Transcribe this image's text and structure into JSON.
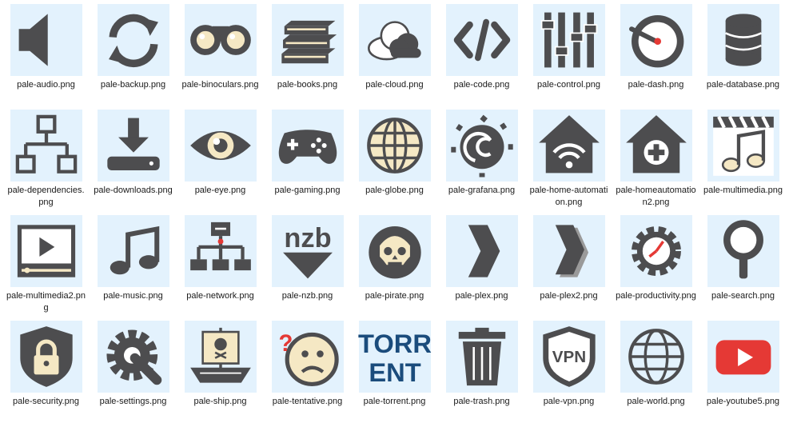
{
  "colors": {
    "tile_bg": "#e3f2fd",
    "icon_dark": "#4d4d4f",
    "icon_cream": "#f5e8c4",
    "accent_red": "#e53935",
    "torrent_blue": "#1b4c7c"
  },
  "files": [
    {
      "name": "pale-audio.png",
      "icon": "speaker-icon"
    },
    {
      "name": "pale-backup.png",
      "icon": "backup-arrows-icon"
    },
    {
      "name": "pale-binoculars.png",
      "icon": "binoculars-icon"
    },
    {
      "name": "pale-books.png",
      "icon": "books-icon"
    },
    {
      "name": "pale-cloud.png",
      "icon": "cloud-icon"
    },
    {
      "name": "pale-code.png",
      "icon": "code-icon"
    },
    {
      "name": "pale-control.png",
      "icon": "sliders-icon"
    },
    {
      "name": "pale-dash.png",
      "icon": "gauge-icon"
    },
    {
      "name": "pale-database.png",
      "icon": "database-icon"
    },
    {
      "name": "pale-dependencies.png",
      "icon": "hierarchy-icon"
    },
    {
      "name": "pale-downloads.png",
      "icon": "download-icon"
    },
    {
      "name": "pale-eye.png",
      "icon": "eye-icon"
    },
    {
      "name": "pale-gaming.png",
      "icon": "gamepad-icon"
    },
    {
      "name": "pale-globe.png",
      "icon": "globe-icon"
    },
    {
      "name": "pale-grafana.png",
      "icon": "grafana-icon"
    },
    {
      "name": "pale-home-automation.png",
      "icon": "home-wifi-icon"
    },
    {
      "name": "pale-homeautomation2.png",
      "icon": "home-gear-icon"
    },
    {
      "name": "pale-multimedia.png",
      "icon": "clapper-music-icon"
    },
    {
      "name": "pale-multimedia2.png",
      "icon": "video-player-icon"
    },
    {
      "name": "pale-music.png",
      "icon": "music-note-icon"
    },
    {
      "name": "pale-network.png",
      "icon": "network-icon"
    },
    {
      "name": "pale-nzb.png",
      "icon": "nzb-icon"
    },
    {
      "name": "pale-pirate.png",
      "icon": "pirate-skull-icon"
    },
    {
      "name": "pale-plex.png",
      "icon": "chevron-right-icon"
    },
    {
      "name": "pale-plex2.png",
      "icon": "chevron-right-shadow-icon"
    },
    {
      "name": "pale-productivity.png",
      "icon": "gear-clock-icon"
    },
    {
      "name": "pale-search.png",
      "icon": "magnifier-icon"
    },
    {
      "name": "pale-security.png",
      "icon": "shield-lock-icon"
    },
    {
      "name": "pale-settings.png",
      "icon": "gear-wrench-icon"
    },
    {
      "name": "pale-ship.png",
      "icon": "pirate-ship-icon"
    },
    {
      "name": "pale-tentative.png",
      "icon": "confused-face-icon"
    },
    {
      "name": "pale-torrent.png",
      "icon": "torrent-text-icon"
    },
    {
      "name": "pale-trash.png",
      "icon": "trash-icon"
    },
    {
      "name": "pale-vpn.png",
      "icon": "vpn-shield-icon"
    },
    {
      "name": "pale-world.png",
      "icon": "world-icon"
    },
    {
      "name": "pale-youtube5.png",
      "icon": "youtube-icon"
    }
  ]
}
